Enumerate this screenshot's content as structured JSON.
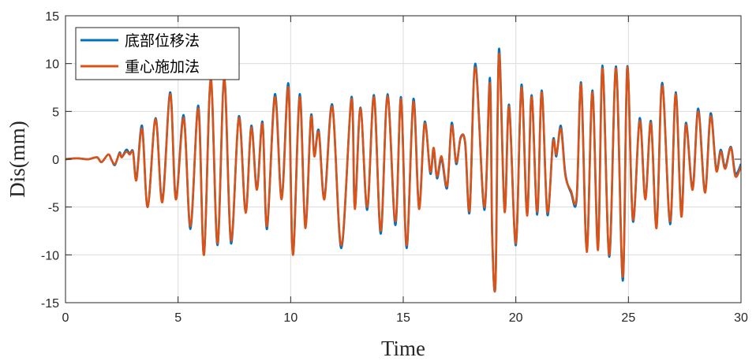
{
  "chart_data": {
    "type": "line",
    "xlabel": "Time",
    "ylabel": "Dis(mm)",
    "xlim": [
      0,
      30
    ],
    "ylim": [
      -15,
      15
    ],
    "xticks": [
      0,
      5,
      10,
      15,
      20,
      25,
      30
    ],
    "yticks": [
      -15,
      -10,
      -5,
      0,
      5,
      10,
      15
    ],
    "grid": true,
    "legend_position": "top-left",
    "series": [
      {
        "name": "底部位移法",
        "color": "#0072BD",
        "points": [
          [
            0,
            0
          ],
          [
            0.5,
            0.1
          ],
          [
            1,
            0
          ],
          [
            1.4,
            0.2
          ],
          [
            1.6,
            -0.3
          ],
          [
            1.9,
            0.5
          ],
          [
            2.05,
            -0.1
          ],
          [
            2.2,
            -0.6
          ],
          [
            2.4,
            0.7
          ],
          [
            2.5,
            0.2
          ],
          [
            2.7,
            1.0
          ],
          [
            2.85,
            0.6
          ],
          [
            3.0,
            0.8
          ],
          [
            3.15,
            -2.0
          ],
          [
            3.4,
            3.5
          ],
          [
            3.65,
            -5.0
          ],
          [
            4.0,
            4.3
          ],
          [
            4.3,
            -4.3
          ],
          [
            4.65,
            7.0
          ],
          [
            4.9,
            -4.0
          ],
          [
            5.25,
            4.6
          ],
          [
            5.55,
            -7.3
          ],
          [
            5.9,
            5.6
          ],
          [
            6.15,
            -10.0
          ],
          [
            6.45,
            8.3
          ],
          [
            6.75,
            -9.0
          ],
          [
            7.05,
            8.3
          ],
          [
            7.35,
            -8.8
          ],
          [
            7.7,
            4.5
          ],
          [
            8.0,
            -5.5
          ],
          [
            8.25,
            3.5
          ],
          [
            8.5,
            -3.0
          ],
          [
            8.75,
            3.9
          ],
          [
            8.95,
            -7.3
          ],
          [
            9.3,
            6.8
          ],
          [
            9.6,
            -4.0
          ],
          [
            9.9,
            7.9
          ],
          [
            10.1,
            -10.0
          ],
          [
            10.4,
            6.8
          ],
          [
            10.65,
            -7.0
          ],
          [
            10.9,
            4.5
          ],
          [
            11.05,
            0.5
          ],
          [
            11.25,
            3.0
          ],
          [
            11.5,
            -4.0
          ],
          [
            11.85,
            5.7
          ],
          [
            12.25,
            -9.3
          ],
          [
            12.7,
            6.5
          ],
          [
            12.85,
            -5.0
          ],
          [
            13.1,
            5.4
          ],
          [
            13.4,
            -5.3
          ],
          [
            13.7,
            6.7
          ],
          [
            14.0,
            -7.8
          ],
          [
            14.3,
            6.8
          ],
          [
            14.65,
            -6.9
          ],
          [
            14.9,
            6.5
          ],
          [
            15.15,
            -9.3
          ],
          [
            15.45,
            6.3
          ],
          [
            15.7,
            -5.0
          ],
          [
            15.95,
            3.9
          ],
          [
            16.2,
            -1.5
          ],
          [
            16.35,
            1.0
          ],
          [
            16.5,
            -2.0
          ],
          [
            16.7,
            0.0
          ],
          [
            16.95,
            -3.0
          ],
          [
            17.15,
            3.8
          ],
          [
            17.35,
            -0.5
          ],
          [
            17.55,
            2.3
          ],
          [
            17.75,
            1.6
          ],
          [
            17.95,
            -5.5
          ],
          [
            18.2,
            10.0
          ],
          [
            18.6,
            -5.3
          ],
          [
            18.95,
            -8.0
          ],
          [
            18.85,
            8.5
          ],
          [
            19.1,
            -12.7
          ],
          [
            19.25,
            11.5
          ],
          [
            19.5,
            -5.3
          ],
          [
            19.7,
            5.7
          ],
          [
            20.0,
            -9.0
          ],
          [
            20.25,
            7.8
          ],
          [
            20.5,
            -5.7
          ],
          [
            20.7,
            6.7
          ],
          [
            20.95,
            -5.8
          ],
          [
            21.15,
            7.2
          ],
          [
            21.4,
            -5.8
          ],
          [
            21.65,
            2.0
          ],
          [
            21.8,
            0.3
          ],
          [
            22.0,
            3.5
          ],
          [
            22.2,
            -1.5
          ],
          [
            22.45,
            -3.5
          ],
          [
            22.7,
            -4.2
          ],
          [
            22.9,
            8.0
          ],
          [
            23.15,
            -9.5
          ],
          [
            23.4,
            7.2
          ],
          [
            23.65,
            -9.2
          ],
          [
            23.85,
            9.8
          ],
          [
            24.15,
            -10.2
          ],
          [
            24.45,
            9.7
          ],
          [
            24.75,
            -12.7
          ],
          [
            24.95,
            9.7
          ],
          [
            25.2,
            -6.5
          ],
          [
            25.5,
            4.3
          ],
          [
            25.75,
            -4.0
          ],
          [
            26.0,
            4.0
          ],
          [
            26.25,
            -7.0
          ],
          [
            26.5,
            8.0
          ],
          [
            26.85,
            -6.8
          ],
          [
            27.1,
            7.0
          ],
          [
            27.35,
            -5.8
          ],
          [
            27.55,
            3.8
          ],
          [
            27.85,
            -3.0
          ],
          [
            28.1,
            5.3
          ],
          [
            28.4,
            -3.3
          ],
          [
            28.65,
            4.8
          ],
          [
            28.9,
            -1.0
          ],
          [
            29.1,
            1.0
          ],
          [
            29.3,
            -0.8
          ],
          [
            29.55,
            1.3
          ],
          [
            29.75,
            -1.5
          ],
          [
            30,
            -0.5
          ]
        ]
      },
      {
        "name": "重心施加法",
        "color": "#D95319",
        "points": [
          [
            0,
            0
          ],
          [
            0.5,
            0.1
          ],
          [
            1,
            0
          ],
          [
            1.4,
            0.2
          ],
          [
            1.6,
            -0.3
          ],
          [
            1.9,
            0.5
          ],
          [
            2.05,
            -0.1
          ],
          [
            2.2,
            -0.5
          ],
          [
            2.4,
            0.6
          ],
          [
            2.5,
            0.2
          ],
          [
            2.7,
            0.8
          ],
          [
            2.85,
            0.5
          ],
          [
            3.0,
            0.7
          ],
          [
            3.15,
            -2.2
          ],
          [
            3.4,
            3.2
          ],
          [
            3.65,
            -5.0
          ],
          [
            4.0,
            4.2
          ],
          [
            4.3,
            -4.5
          ],
          [
            4.65,
            6.8
          ],
          [
            4.9,
            -4.2
          ],
          [
            5.25,
            4.3
          ],
          [
            5.55,
            -7.0
          ],
          [
            5.9,
            5.3
          ],
          [
            6.15,
            -10.0
          ],
          [
            6.45,
            8.5
          ],
          [
            6.75,
            -8.8
          ],
          [
            7.05,
            8.5
          ],
          [
            7.35,
            -8.5
          ],
          [
            7.7,
            4.3
          ],
          [
            8.0,
            -5.6
          ],
          [
            8.25,
            3.3
          ],
          [
            8.5,
            -3.2
          ],
          [
            8.75,
            3.7
          ],
          [
            8.95,
            -7.0
          ],
          [
            9.3,
            6.5
          ],
          [
            9.6,
            -4.2
          ],
          [
            9.9,
            7.5
          ],
          [
            10.1,
            -10.0
          ],
          [
            10.4,
            6.5
          ],
          [
            10.65,
            -7.2
          ],
          [
            10.9,
            4.3
          ],
          [
            11.05,
            0.3
          ],
          [
            11.25,
            2.8
          ],
          [
            11.5,
            -4.2
          ],
          [
            11.85,
            5.5
          ],
          [
            12.25,
            -9.0
          ],
          [
            12.7,
            6.3
          ],
          [
            12.85,
            -5.2
          ],
          [
            13.1,
            5.3
          ],
          [
            13.4,
            -5.0
          ],
          [
            13.7,
            6.5
          ],
          [
            14.0,
            -7.5
          ],
          [
            14.3,
            6.6
          ],
          [
            14.65,
            -6.5
          ],
          [
            14.9,
            6.3
          ],
          [
            15.15,
            -9.0
          ],
          [
            15.45,
            6.0
          ],
          [
            15.7,
            -5.2
          ],
          [
            15.95,
            3.7
          ],
          [
            16.2,
            -1.3
          ],
          [
            16.35,
            1.2
          ],
          [
            16.5,
            -1.8
          ],
          [
            16.7,
            0.3
          ],
          [
            16.95,
            -2.8
          ],
          [
            17.15,
            3.5
          ],
          [
            17.35,
            -0.3
          ],
          [
            17.55,
            2.2
          ],
          [
            17.75,
            1.8
          ],
          [
            17.95,
            -5.3
          ],
          [
            18.2,
            9.6
          ],
          [
            18.6,
            -5.0
          ],
          [
            18.95,
            -7.8
          ],
          [
            18.85,
            8.0
          ],
          [
            19.1,
            -12.8
          ],
          [
            19.25,
            11.0
          ],
          [
            19.5,
            -5.5
          ],
          [
            19.7,
            5.5
          ],
          [
            20.0,
            -8.8
          ],
          [
            20.25,
            7.5
          ],
          [
            20.5,
            -5.9
          ],
          [
            20.7,
            6.5
          ],
          [
            20.95,
            -5.5
          ],
          [
            21.15,
            7.0
          ],
          [
            21.4,
            -5.5
          ],
          [
            21.65,
            1.8
          ],
          [
            21.8,
            0.5
          ],
          [
            22.0,
            3.2
          ],
          [
            22.2,
            -1.7
          ],
          [
            22.45,
            -3.3
          ],
          [
            22.7,
            -4.0
          ],
          [
            22.9,
            7.8
          ],
          [
            23.15,
            -9.7
          ],
          [
            23.4,
            7.0
          ],
          [
            23.65,
            -9.5
          ],
          [
            23.85,
            9.5
          ],
          [
            24.15,
            -10.0
          ],
          [
            24.45,
            9.5
          ],
          [
            24.75,
            -12.3
          ],
          [
            24.95,
            9.6
          ],
          [
            25.2,
            -6.3
          ],
          [
            25.5,
            4.0
          ],
          [
            25.75,
            -4.2
          ],
          [
            26.0,
            3.8
          ],
          [
            26.25,
            -7.2
          ],
          [
            26.5,
            7.7
          ],
          [
            26.85,
            -6.5
          ],
          [
            27.1,
            6.8
          ],
          [
            27.35,
            -6.0
          ],
          [
            27.55,
            3.6
          ],
          [
            27.85,
            -3.2
          ],
          [
            28.1,
            5.0
          ],
          [
            28.4,
            -3.5
          ],
          [
            28.65,
            4.5
          ],
          [
            28.9,
            -1.2
          ],
          [
            29.1,
            0.8
          ],
          [
            29.3,
            -1.0
          ],
          [
            29.55,
            1.2
          ],
          [
            29.75,
            -1.8
          ],
          [
            30,
            -0.7
          ]
        ]
      }
    ]
  }
}
